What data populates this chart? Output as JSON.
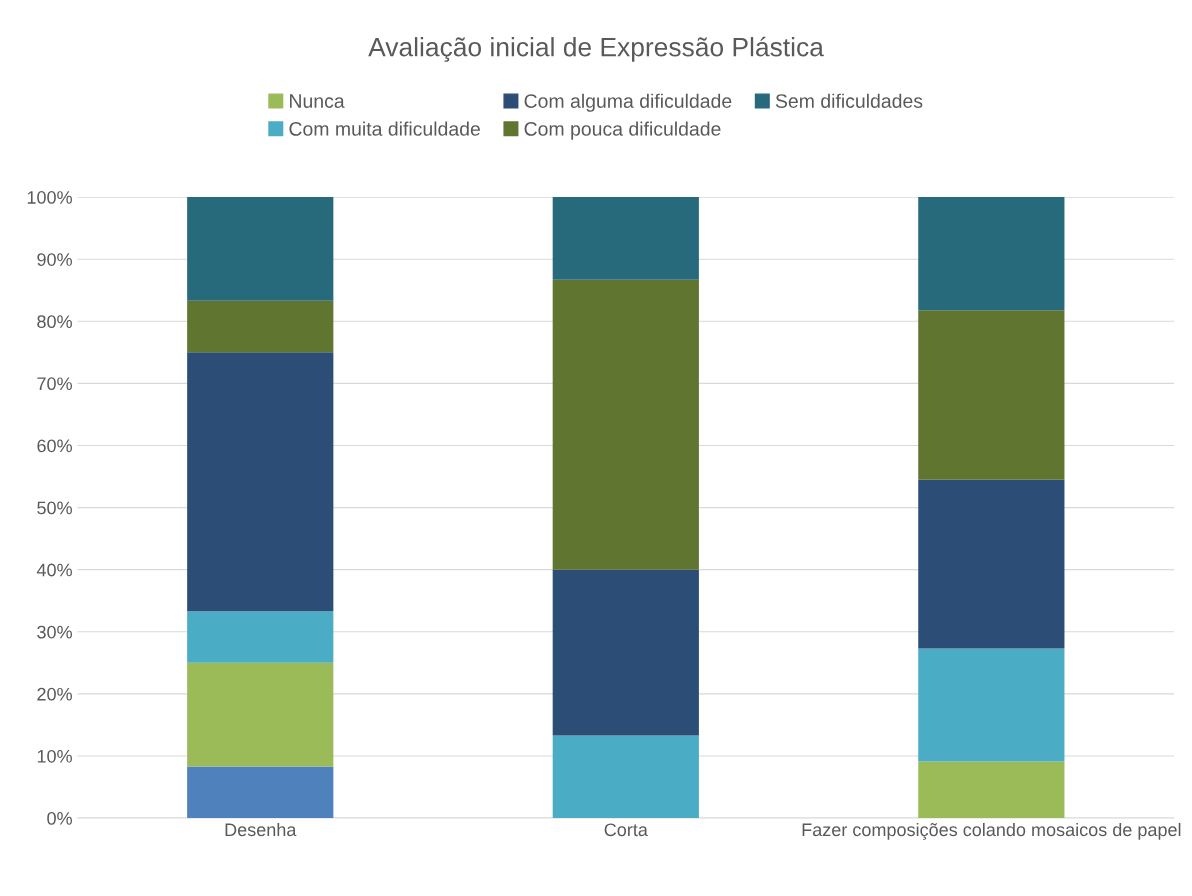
{
  "chart_data": {
    "type": "bar",
    "title": "Avaliação inicial de Expressão Plástica",
    "categories": [
      "Desenha",
      "Corta",
      "Fazer composições colando mosaicos de papel"
    ],
    "stacked": true,
    "series": [
      {
        "color": "#4f81bd",
        "values": [
          8.3,
          0,
          0
        ]
      },
      {
        "name": "Nunca",
        "color": "#9bbb59",
        "values": [
          16.7,
          0,
          9.1
        ]
      },
      {
        "name": "Com muita dificuldade",
        "color": "#4bacc6",
        "values": [
          8.3,
          13.3,
          18.2
        ]
      },
      {
        "name": "Com alguma dificuldade",
        "color": "#2c4d75",
        "values": [
          41.7,
          26.7,
          27.2
        ]
      },
      {
        "name": "Com pouca dificuldade",
        "color": "#5f7530",
        "values": [
          8.3,
          46.7,
          27.3
        ]
      },
      {
        "name": "Sem dificuldades",
        "color": "#276a7c",
        "values": [
          16.7,
          13.3,
          18.2
        ]
      }
    ],
    "ylim": [
      0,
      100
    ],
    "yticks": [
      {
        "value": 0,
        "label": "0%"
      },
      {
        "value": 10,
        "label": "10%"
      },
      {
        "value": 20,
        "label": "20%"
      },
      {
        "value": 30,
        "label": "30%"
      },
      {
        "value": 40,
        "label": "40%"
      },
      {
        "value": 50,
        "label": "50%"
      },
      {
        "value": 60,
        "label": "60%"
      },
      {
        "value": 70,
        "label": "70%"
      },
      {
        "value": 80,
        "label": "80%"
      },
      {
        "value": 90,
        "label": "90%"
      },
      {
        "value": 100,
        "label": "100%"
      }
    ],
    "grid": "y",
    "legend": "top"
  }
}
